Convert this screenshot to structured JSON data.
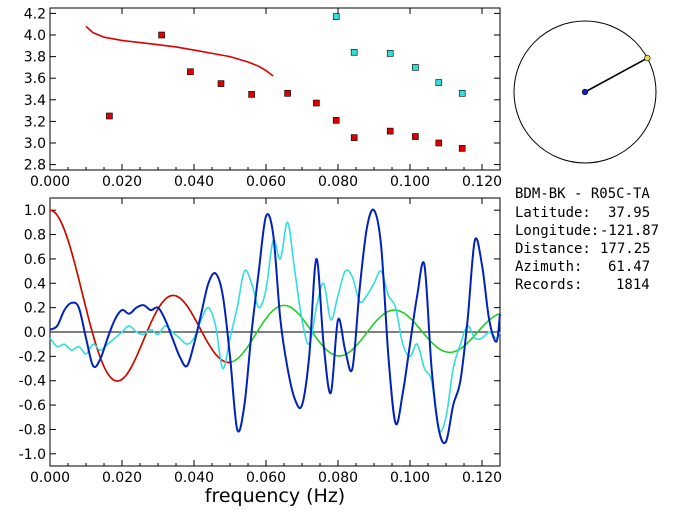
{
  "station": {
    "title": "BDM-BK - R05C-TA",
    "rows": [
      {
        "label": "Latitude:",
        "value": "37.95"
      },
      {
        "label": "Longitude:",
        "value": "-121.87"
      },
      {
        "label": "Distance:",
        "value": "177.25"
      },
      {
        "label": "Azimuth:",
        "value": "61.47"
      },
      {
        "label": "Records:",
        "value": "1814"
      }
    ]
  },
  "colors": {
    "red": "#dd0000",
    "cyan": "#33dddd",
    "blue": "#0022bb",
    "green": "#22cc22",
    "axis": "#000000"
  },
  "chart_data": [
    {
      "type": "scatter",
      "xlim": [
        0,
        0.125
      ],
      "ylim": [
        2.75,
        4.25
      ],
      "xticks": [
        "0.000",
        "0.020",
        "0.040",
        "0.060",
        "0.080",
        "0.100",
        "0.120"
      ],
      "yticks": [
        "2.8",
        "3.0",
        "3.2",
        "3.4",
        "3.6",
        "3.8",
        "4.0",
        "4.2"
      ],
      "series": [
        {
          "color": "red",
          "marker": "square",
          "x": [
            0.0165,
            0.031,
            0.039,
            0.0475,
            0.056,
            0.066,
            0.074,
            0.0795,
            0.0845,
            0.0945,
            0.1015,
            0.108,
            0.1145
          ],
          "y": [
            3.25,
            4.0,
            3.66,
            3.55,
            3.45,
            3.46,
            3.37,
            3.21,
            3.05,
            3.11,
            3.06,
            3.0,
            2.95
          ]
        },
        {
          "color": "cyan",
          "marker": "square",
          "x": [
            0.0795,
            0.0845,
            0.0945,
            0.1015,
            0.108,
            0.1145
          ],
          "y": [
            4.17,
            3.84,
            3.83,
            3.7,
            3.56,
            3.46
          ]
        },
        {
          "color": "red",
          "marker": "line",
          "x": [
            0.01,
            0.012,
            0.015,
            0.02,
            0.025,
            0.03,
            0.035,
            0.04,
            0.045,
            0.05,
            0.055,
            0.058,
            0.06,
            0.062
          ],
          "y": [
            4.08,
            4.02,
            3.98,
            3.95,
            3.93,
            3.91,
            3.89,
            3.86,
            3.83,
            3.8,
            3.75,
            3.71,
            3.67,
            3.62
          ]
        }
      ]
    },
    {
      "type": "line",
      "xlabel": "frequency (Hz)",
      "xlim": [
        0,
        0.125
      ],
      "ylim": [
        -1.1,
        1.1
      ],
      "xticks": [
        "0.000",
        "0.020",
        "0.040",
        "0.060",
        "0.080",
        "0.100",
        "0.120"
      ],
      "yticks": [
        "-1.0",
        "-0.8",
        "-0.6",
        "-0.4",
        "-0.2",
        "0.0",
        "0.2",
        "0.4",
        "0.6",
        "0.8",
        "1.0"
      ],
      "series": [
        {
          "color": "blue",
          "x": [
            0,
            0.002,
            0.004,
            0.006,
            0.008,
            0.01,
            0.012,
            0.014,
            0.016,
            0.018,
            0.02,
            0.022,
            0.024,
            0.026,
            0.028,
            0.03,
            0.032,
            0.034,
            0.036,
            0.038,
            0.04,
            0.042,
            0.044,
            0.046,
            0.048,
            0.05,
            0.052,
            0.054,
            0.056,
            0.058,
            0.06,
            0.062,
            0.064,
            0.066,
            0.068,
            0.07,
            0.072,
            0.074,
            0.076,
            0.078,
            0.08,
            0.082,
            0.084,
            0.086,
            0.088,
            0.09,
            0.092,
            0.094,
            0.096,
            0.098,
            0.1,
            0.102,
            0.104,
            0.106,
            0.108,
            0.11,
            0.112,
            0.114,
            0.116,
            0.118,
            0.12,
            0.122,
            0.124,
            0.125
          ],
          "y": [
            0.02,
            0.05,
            0.18,
            0.24,
            0.2,
            -0.05,
            -0.28,
            -0.22,
            -0.05,
            0.1,
            0.18,
            0.15,
            0.2,
            0.22,
            0.18,
            0.2,
            0.1,
            -0.05,
            -0.2,
            -0.28,
            -0.1,
            0.15,
            0.4,
            0.48,
            0.3,
            -0.2,
            -0.8,
            -0.6,
            0.0,
            0.5,
            0.95,
            0.8,
            0.1,
            -0.3,
            -0.55,
            -0.6,
            -0.2,
            0.6,
            -0.1,
            -0.5,
            0.1,
            -0.15,
            -0.3,
            0.35,
            0.85,
            1.0,
            0.7,
            -0.2,
            -0.75,
            -0.5,
            -0.1,
            0.3,
            0.55,
            -0.3,
            -0.8,
            -0.9,
            -0.6,
            -0.4,
            0.1,
            0.75,
            0.55,
            0.1,
            -0.08,
            0.15
          ]
        },
        {
          "color": "cyan",
          "x": [
            0,
            0.002,
            0.004,
            0.006,
            0.008,
            0.01,
            0.012,
            0.014,
            0.016,
            0.018,
            0.02,
            0.022,
            0.024,
            0.026,
            0.028,
            0.03,
            0.032,
            0.034,
            0.036,
            0.038,
            0.04,
            0.042,
            0.044,
            0.046,
            0.048,
            0.05,
            0.052,
            0.054,
            0.056,
            0.058,
            0.06,
            0.062,
            0.064,
            0.066,
            0.068,
            0.07,
            0.072,
            0.074,
            0.076,
            0.078,
            0.08,
            0.082,
            0.084,
            0.086,
            0.088,
            0.09,
            0.092,
            0.094,
            0.096,
            0.098,
            0.1,
            0.102,
            0.104,
            0.106,
            0.108,
            0.11,
            0.112,
            0.114,
            0.116,
            0.118,
            0.12,
            0.122,
            0.124,
            0.125
          ],
          "y": [
            -0.05,
            -0.12,
            -0.1,
            -0.15,
            -0.12,
            -0.18,
            -0.1,
            -0.15,
            -0.1,
            -0.05,
            0.0,
            0.05,
            0.0,
            -0.02,
            0.02,
            -0.02,
            0.05,
            0.0,
            -0.05,
            -0.1,
            -0.05,
            0.1,
            0.2,
            0.05,
            -0.3,
            -0.05,
            0.2,
            0.5,
            0.4,
            0.2,
            0.35,
            0.75,
            0.6,
            0.9,
            0.5,
            0.1,
            -0.1,
            0.2,
            0.4,
            0.1,
            0.3,
            0.5,
            0.45,
            0.25,
            0.3,
            0.4,
            0.5,
            0.3,
            0.2,
            -0.1,
            -0.2,
            -0.1,
            -0.3,
            -0.4,
            -0.8,
            -0.7,
            -0.3,
            -0.1,
            0.05,
            -0.05,
            -0.05,
            0.0,
            -0.05,
            0.0
          ]
        },
        {
          "color": "red",
          "fn": "j0",
          "k": 205,
          "xmax": 0.05
        },
        {
          "color": "green",
          "fn": "j0",
          "k": 205,
          "xmax": 0.125
        }
      ]
    },
    {
      "type": "polar",
      "azimuth_deg": 61.47,
      "radius_fraction": 1.0
    }
  ]
}
